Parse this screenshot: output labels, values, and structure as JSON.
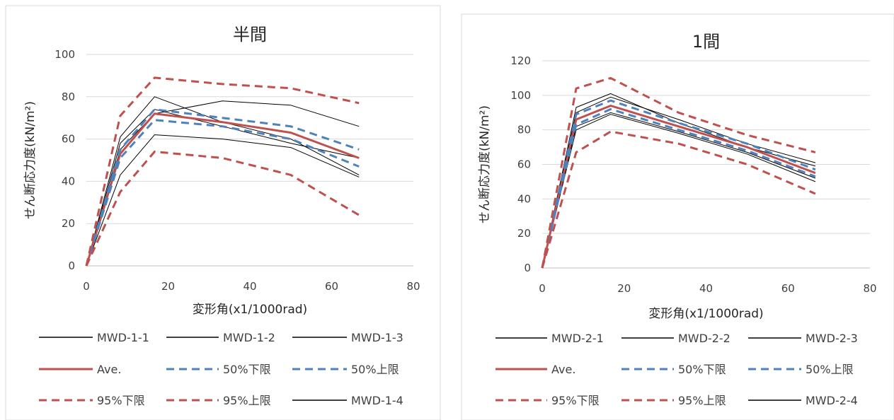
{
  "chart_data": [
    {
      "type": "line",
      "title": "半間",
      "xlabel": "変形角(x1/1000rad)",
      "ylabel": "せん断応力度(kN/m²)",
      "xlim": [
        0,
        80
      ],
      "ylim": [
        0,
        100
      ],
      "xticks": [
        "0",
        "20",
        "40",
        "60",
        "80"
      ],
      "yticks": [
        "0",
        "20",
        "40",
        "60",
        "80",
        "100"
      ],
      "grid": true,
      "legend": "bottom",
      "series": [
        {
          "name": "MWD-1-1",
          "color": "#000000",
          "dash": "solid",
          "width": 1,
          "x": [
            0,
            8.3,
            16.7,
            33.3,
            50,
            66.7
          ],
          "y": [
            0,
            61,
            80,
            68,
            60,
            43
          ]
        },
        {
          "name": "MWD-1-2",
          "color": "#000000",
          "dash": "solid",
          "width": 1,
          "x": [
            0,
            8.3,
            16.7,
            33.3,
            50,
            66.7
          ],
          "y": [
            0,
            55,
            72,
            78,
            76,
            66
          ]
        },
        {
          "name": "MWD-1-3",
          "color": "#000000",
          "dash": "solid",
          "width": 1,
          "x": [
            0,
            8.3,
            16.7,
            33.3,
            50,
            66.7
          ],
          "y": [
            0,
            43,
            62,
            60,
            56,
            42
          ]
        },
        {
          "name": "Ave.",
          "color": "#c0504d",
          "dash": "solid",
          "width": 3,
          "x": [
            0,
            8.3,
            16.7,
            33.3,
            50,
            66.7
          ],
          "y": [
            0,
            53,
            72,
            68,
            63,
            51
          ]
        },
        {
          "name": "50%下限",
          "color": "#4f81bd",
          "dash": "dash",
          "width": 3,
          "x": [
            0,
            8.3,
            16.7,
            33.3,
            50,
            66.7
          ],
          "y": [
            0,
            51,
            69,
            66,
            60,
            47
          ]
        },
        {
          "name": "50%上限",
          "color": "#4f81bd",
          "dash": "dash",
          "width": 3,
          "x": [
            0,
            8.3,
            16.7,
            33.3,
            50,
            66.7
          ],
          "y": [
            0,
            55,
            74,
            70,
            66,
            55
          ]
        },
        {
          "name": "95%下限",
          "color": "#c0504d",
          "dash": "dash",
          "width": 3,
          "x": [
            0,
            8.3,
            16.7,
            33.3,
            50,
            66.7
          ],
          "y": [
            0,
            35,
            54,
            51,
            43,
            24
          ]
        },
        {
          "name": "95%上限",
          "color": "#c0504d",
          "dash": "dash",
          "width": 3,
          "x": [
            0,
            8.3,
            16.7,
            33.3,
            50,
            66.7
          ],
          "y": [
            0,
            71,
            89,
            86,
            84,
            77
          ]
        },
        {
          "name": "MWD-1-4",
          "color": "#000000",
          "dash": "solid",
          "width": 1,
          "x": [
            0,
            8.3,
            16.7,
            33.3,
            50,
            66.7
          ],
          "y": [
            0,
            58,
            74,
            66,
            58,
            51
          ]
        }
      ]
    },
    {
      "type": "line",
      "title": "1間",
      "xlabel": "変形角(x1/1000rad)",
      "ylabel": "せん断応力度(kN/m²)",
      "xlim": [
        0,
        80
      ],
      "ylim": [
        0,
        120
      ],
      "xticks": [
        "0",
        "20",
        "40",
        "60",
        "80"
      ],
      "yticks": [
        "0",
        "20",
        "40",
        "60",
        "80",
        "100",
        "120"
      ],
      "grid": true,
      "legend": "bottom",
      "series": [
        {
          "name": "MWD-2-1",
          "color": "#000000",
          "dash": "solid",
          "width": 1,
          "x": [
            0,
            8.3,
            16.7,
            33.3,
            50,
            66.7
          ],
          "y": [
            0,
            93,
            101,
            84,
            70,
            59
          ]
        },
        {
          "name": "MWD-2-2",
          "color": "#000000",
          "dash": "solid",
          "width": 1,
          "x": [
            0,
            8.3,
            16.7,
            33.3,
            50,
            66.7
          ],
          "y": [
            0,
            80,
            89,
            78,
            66,
            50
          ]
        },
        {
          "name": "MWD-2-3",
          "color": "#000000",
          "dash": "solid",
          "width": 1,
          "x": [
            0,
            8.3,
            16.7,
            33.3,
            50,
            66.7
          ],
          "y": [
            0,
            90,
            99,
            86,
            72,
            61
          ]
        },
        {
          "name": "Ave.",
          "color": "#c0504d",
          "dash": "solid",
          "width": 3,
          "x": [
            0,
            8.3,
            16.7,
            33.3,
            50,
            66.7
          ],
          "y": [
            0,
            86,
            94,
            82,
            70,
            55
          ]
        },
        {
          "name": "50%下限",
          "color": "#4f81bd",
          "dash": "dash",
          "width": 3,
          "x": [
            0,
            8.3,
            16.7,
            33.3,
            50,
            66.7
          ],
          "y": [
            0,
            83,
            92,
            80,
            68,
            53
          ]
        },
        {
          "name": "50%上限",
          "color": "#4f81bd",
          "dash": "dash",
          "width": 3,
          "x": [
            0,
            8.3,
            16.7,
            33.3,
            50,
            66.7
          ],
          "y": [
            0,
            89,
            97,
            84,
            72,
            57
          ]
        },
        {
          "name": "95%下限",
          "color": "#c0504d",
          "dash": "dash",
          "width": 3,
          "x": [
            0,
            8.3,
            16.7,
            33.3,
            50,
            66.7
          ],
          "y": [
            0,
            67,
            79,
            72,
            60,
            43
          ]
        },
        {
          "name": "95%上限",
          "color": "#c0504d",
          "dash": "dash",
          "width": 3,
          "x": [
            0,
            8.3,
            16.7,
            33.3,
            50,
            66.7
          ],
          "y": [
            0,
            104,
            110,
            90,
            77,
            67
          ]
        },
        {
          "name": "MWD-2-4",
          "color": "#000000",
          "dash": "solid",
          "width": 1,
          "x": [
            0,
            8.3,
            16.7,
            33.3,
            50,
            66.7
          ],
          "y": [
            0,
            82,
            90,
            79,
            67,
            52
          ]
        }
      ]
    }
  ]
}
